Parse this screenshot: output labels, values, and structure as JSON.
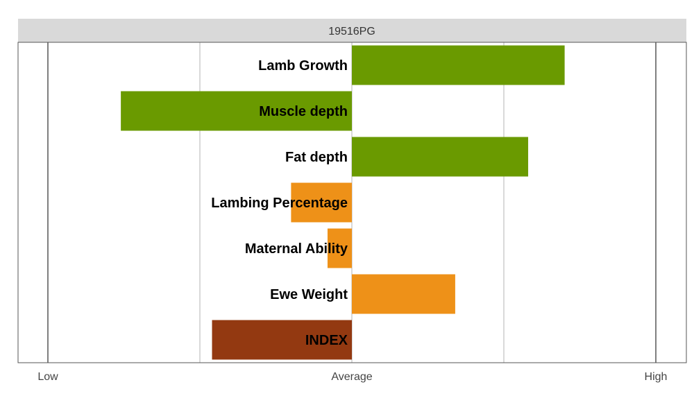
{
  "chart_data": {
    "type": "bar",
    "orientation": "horizontal",
    "title": "19516PG",
    "categories": [
      "Lamb Growth",
      "Muscle depth",
      "Fat depth",
      "Lambing Percentage",
      "Maternal Ability",
      "Ewe Weight",
      "INDEX"
    ],
    "values": [
      0.7,
      -0.76,
      0.58,
      -0.2,
      -0.08,
      0.34,
      -0.46
    ],
    "colors": [
      "#6a9a00",
      "#6a9a00",
      "#6a9a00",
      "#ee9118",
      "#ee9118",
      "#ee9118",
      "#933911"
    ],
    "xlim": [
      -1,
      1
    ],
    "x_ticks": [
      -1,
      -0.5,
      0,
      0.5,
      1
    ],
    "x_tick_labels": [
      "Low",
      "",
      "Average",
      "",
      "High"
    ],
    "grid": true,
    "legend": "none"
  }
}
